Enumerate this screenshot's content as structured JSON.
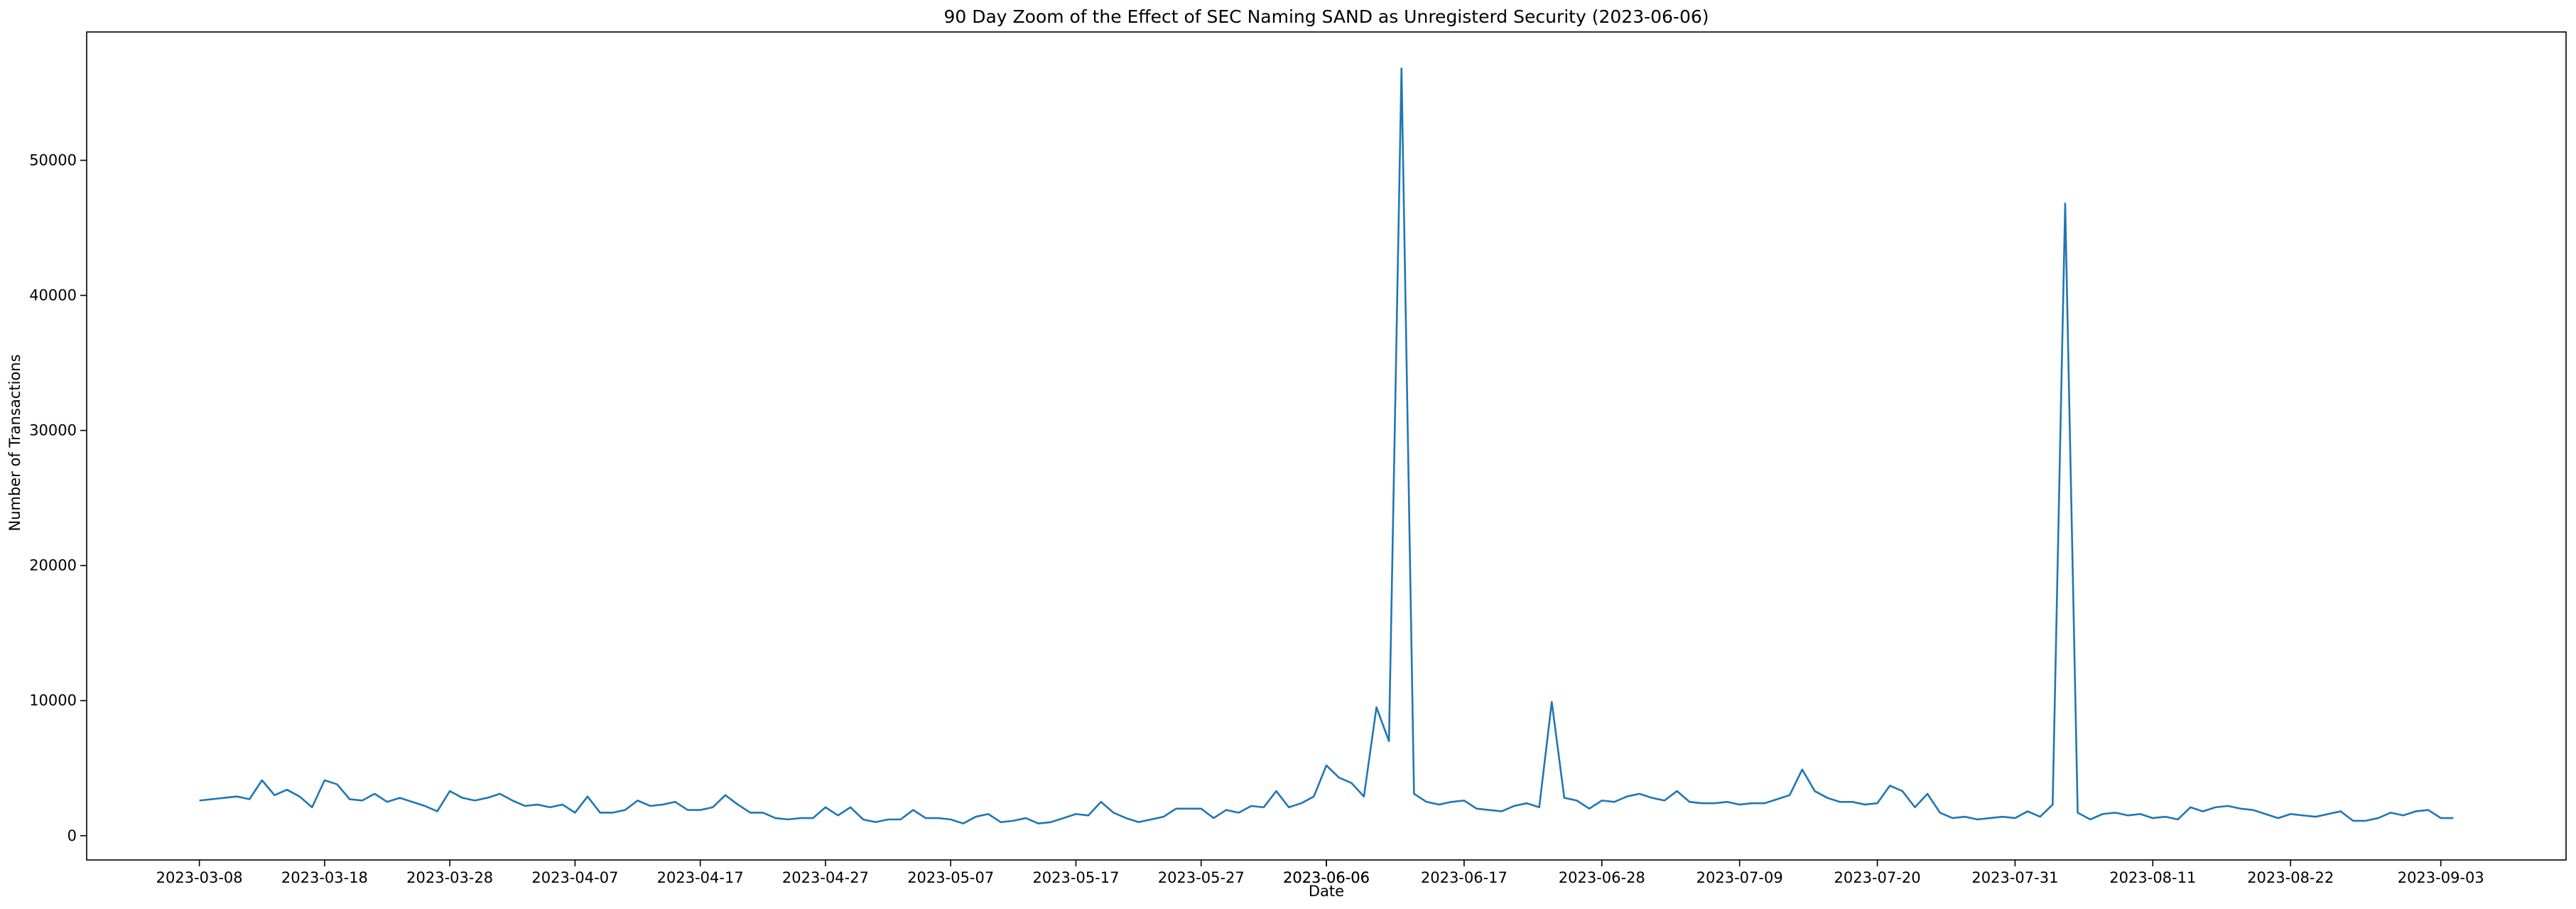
{
  "chart_data": {
    "type": "line",
    "title": "90 Day Zoom of the Effect of SEC Naming SAND as Unregisterd Security (2023-06-06)",
    "xlabel": "Date",
    "ylabel": "Number of Transactions",
    "x_range": [
      "2023-02-27",
      "2023-09-13"
    ],
    "ylim": [
      -1800,
      59500
    ],
    "grid": false,
    "x_ticks": [
      "2023-03-08",
      "2023-03-18",
      "2023-03-28",
      "2023-04-07",
      "2023-04-17",
      "2023-04-27",
      "2023-05-07",
      "2023-05-17",
      "2023-05-27",
      "2023-06-06",
      "2023-06-06",
      "2023-06-17",
      "2023-06-28",
      "2023-07-09",
      "2023-07-20",
      "2023-07-31",
      "2023-08-11",
      "2023-08-22",
      "2023-09-03"
    ],
    "y_ticks": [
      0,
      10000,
      20000,
      30000,
      40000,
      50000
    ],
    "series": [
      {
        "color": "#1f77b4",
        "x_start": "2023-03-08",
        "x_step_days": 1,
        "values": [
          2600,
          2700,
          2800,
          2900,
          2700,
          4100,
          3000,
          3400,
          2900,
          2100,
          4100,
          3800,
          2700,
          2600,
          3100,
          2500,
          2800,
          2500,
          2200,
          1800,
          3300,
          2800,
          2600,
          2800,
          3100,
          2600,
          2200,
          2300,
          2100,
          2300,
          1700,
          2900,
          1700,
          1700,
          1900,
          2600,
          2200,
          2300,
          2500,
          1900,
          1900,
          2100,
          3000,
          2300,
          1700,
          1700,
          1300,
          1200,
          1300,
          1300,
          2100,
          1500,
          2100,
          1200,
          1000,
          1200,
          1200,
          1900,
          1300,
          1300,
          1200,
          900,
          1400,
          1600,
          1000,
          1100,
          1300,
          900,
          1000,
          1300,
          1600,
          1500,
          2500,
          1700,
          1300,
          1000,
          1200,
          1400,
          2000,
          2000,
          2000,
          1300,
          1900,
          1700,
          2200,
          2100,
          3300,
          2100,
          2400,
          2900,
          5200,
          4300,
          3900,
          2900,
          9500,
          7000,
          56800,
          3100,
          2500,
          2300,
          2500,
          2600,
          2000,
          1900,
          1800,
          2200,
          2400,
          2100,
          9900,
          2800,
          2600,
          2000,
          2600,
          2500,
          2900,
          3100,
          2800,
          2600,
          3300,
          2500,
          2400,
          2400,
          2500,
          2300,
          2400,
          2400,
          2700,
          3000,
          4900,
          3300,
          2800,
          2500,
          2500,
          2300,
          2400,
          3700,
          3300,
          2100,
          3100,
          1700,
          1300,
          1400,
          1200,
          1300,
          1400,
          1300,
          1800,
          1400,
          2300,
          46800,
          1700,
          1200,
          1600,
          1700,
          1500,
          1600,
          1300,
          1400,
          1200,
          2100,
          1800,
          2100,
          2200,
          2000,
          1900,
          1600,
          1300,
          1600,
          1500,
          1400,
          1600,
          1800,
          1100,
          1100,
          1300,
          1700,
          1500,
          1800,
          1900,
          1300,
          1300
        ]
      }
    ]
  }
}
